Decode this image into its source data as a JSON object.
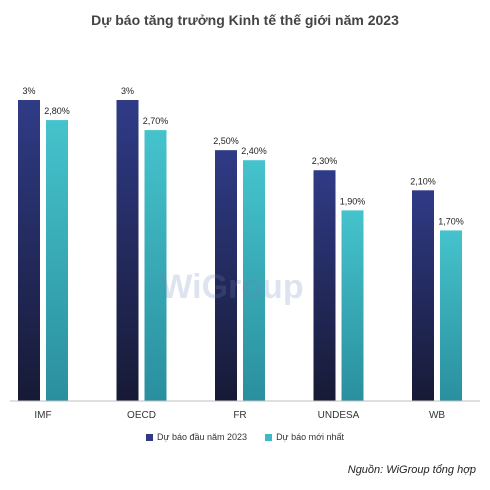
{
  "chart_data": {
    "type": "bar",
    "title": "Dự báo tăng trưởng Kinh tế thế giới năm 2023",
    "categories": [
      "IMF",
      "OECD",
      "FR",
      "UNDESA",
      "WB"
    ],
    "series": [
      {
        "name": "Dự báo đầu năm 2023",
        "values": [
          3.0,
          3.0,
          2.5,
          2.3,
          2.1
        ],
        "labels": [
          "3%",
          "3%",
          "2,50%",
          "2,30%",
          "2,10%"
        ]
      },
      {
        "name": "Dự báo mới nhất",
        "values": [
          2.8,
          2.7,
          2.4,
          1.9,
          1.7
        ],
        "labels": [
          "2,80%",
          "2,70%",
          "2,40%",
          "1,90%",
          "1,70%"
        ]
      }
    ],
    "ylim": [
      0,
      3.0
    ],
    "legend_position": "bottom",
    "colors": [
      "#2e3a82",
      "#3fb9c3"
    ]
  },
  "watermark": "WiGroup",
  "source": "Nguồn: WiGroup tổng hợp"
}
